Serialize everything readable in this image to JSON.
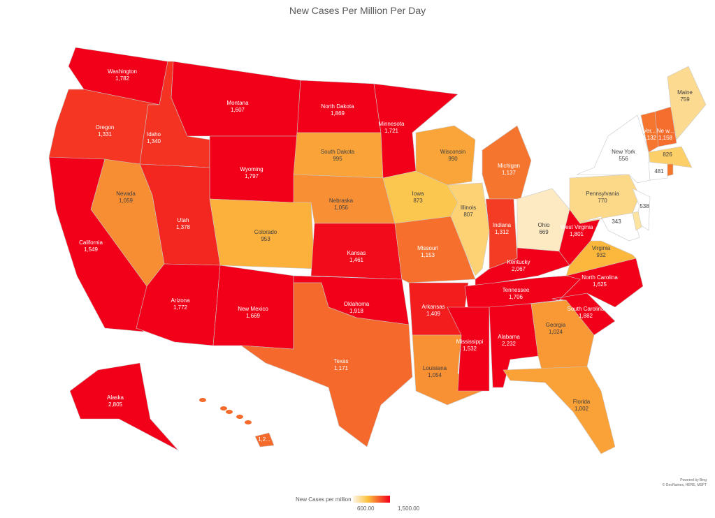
{
  "chart_data": {
    "type": "choropleth",
    "title": "New Cases Per Million Per Day",
    "legend": {
      "title": "New Cases per million",
      "min_label": "600.00",
      "max_label": "1,500.00",
      "min": 600,
      "max": 1500,
      "colors": [
        "#fdf6ea",
        "#fcc23f",
        "#f5602a",
        "#f20019"
      ]
    },
    "credit": [
      "Powered by Bing",
      "© GeoNames, HERE, MSFT"
    ],
    "regions": [
      {
        "id": "WA",
        "label": "Washington",
        "value": 1782,
        "text": "1,782"
      },
      {
        "id": "OR",
        "label": "Oregon",
        "value": 1331,
        "text": "1,331"
      },
      {
        "id": "ID",
        "label": "Idaho",
        "value": 1340,
        "text": "1,340"
      },
      {
        "id": "MT",
        "label": "Montana",
        "value": 1607,
        "text": "1,607"
      },
      {
        "id": "WY",
        "label": "Wyoming",
        "value": 1797,
        "text": "1,797"
      },
      {
        "id": "ND",
        "label": "North Dakota",
        "value": 1869,
        "text": "1,869"
      },
      {
        "id": "SD",
        "label": "South Dakota",
        "value": 995,
        "text": "995"
      },
      {
        "id": "NE",
        "label": "Nebraska",
        "value": 1056,
        "text": "1,056"
      },
      {
        "id": "CO",
        "label": "Colorado",
        "value": 953,
        "text": "953"
      },
      {
        "id": "UT",
        "label": "Utah",
        "value": 1378,
        "text": "1,378"
      },
      {
        "id": "NV",
        "label": "Nevada",
        "value": 1059,
        "text": "1,059"
      },
      {
        "id": "CA",
        "label": "California",
        "value": 1549,
        "text": "1,549"
      },
      {
        "id": "AZ",
        "label": "Arizona",
        "value": 1772,
        "text": "1,772"
      },
      {
        "id": "NM",
        "label": "New Mexico",
        "value": 1669,
        "text": "1,669"
      },
      {
        "id": "KS",
        "label": "Kansas",
        "value": 1461,
        "text": "1,461"
      },
      {
        "id": "OK",
        "label": "Oklahoma",
        "value": 1918,
        "text": "1,918"
      },
      {
        "id": "TX",
        "label": "Texas",
        "value": 1171,
        "text": "1,171"
      },
      {
        "id": "MN",
        "label": "Minnesota",
        "value": 1721,
        "text": "1,721"
      },
      {
        "id": "IA",
        "label": "Iowa",
        "value": 873,
        "text": "873"
      },
      {
        "id": "MO",
        "label": "Missouri",
        "value": 1153,
        "text": "1,153"
      },
      {
        "id": "AR",
        "label": "Arkansas",
        "value": 1409,
        "text": "1,409"
      },
      {
        "id": "LA",
        "label": "Louisiana",
        "value": 1054,
        "text": "1,054"
      },
      {
        "id": "WI",
        "label": "Wisconsin",
        "value": 990,
        "text": "990"
      },
      {
        "id": "IL",
        "label": "Illinois",
        "value": 807,
        "text": "807"
      },
      {
        "id": "MI",
        "label": "Michigan",
        "value": 1137,
        "text": "1,137"
      },
      {
        "id": "IN",
        "label": "Indiana",
        "value": 1312,
        "text": "1,312"
      },
      {
        "id": "OH",
        "label": "Ohio",
        "value": 669,
        "text": "669"
      },
      {
        "id": "KY",
        "label": "Kentucky",
        "value": 2067,
        "text": "2,067"
      },
      {
        "id": "TN",
        "label": "Tennessee",
        "value": 1706,
        "text": "1,706"
      },
      {
        "id": "MS",
        "label": "Mississippi",
        "value": 1532,
        "text": "1,532"
      },
      {
        "id": "AL",
        "label": "Alabama",
        "value": 2232,
        "text": "2,232"
      },
      {
        "id": "GA",
        "label": "Georgia",
        "value": 1024,
        "text": "1,024"
      },
      {
        "id": "FL",
        "label": "Florida",
        "value": 1002,
        "text": "1,002"
      },
      {
        "id": "SC",
        "label": "South Carolina",
        "value": 1882,
        "text": "1,882"
      },
      {
        "id": "NC",
        "label": "North Carolina",
        "value": 1625,
        "text": "1,625"
      },
      {
        "id": "VA",
        "label": "Virginia",
        "value": 932,
        "text": "932"
      },
      {
        "id": "WV",
        "label": "West Virginia",
        "value": 1801,
        "text": "1,801"
      },
      {
        "id": "PA",
        "label": "Pennsylvania",
        "value": 770,
        "text": "770"
      },
      {
        "id": "NY",
        "label": "New York",
        "value": 556,
        "text": "556"
      },
      {
        "id": "NJ",
        "label": "",
        "value": 538,
        "text": "538"
      },
      {
        "id": "MD",
        "label": "",
        "value": 343,
        "text": "343"
      },
      {
        "id": "DE",
        "label": "",
        "value": null,
        "text": "",
        "color": "#fde3a0"
      },
      {
        "id": "VT",
        "label": "Ver...",
        "value": 1132,
        "text": "1,132"
      },
      {
        "id": "NH",
        "label": "Ne w...",
        "value": 1158,
        "text": "1,158"
      },
      {
        "id": "ME",
        "label": "Maine",
        "value": 759,
        "text": "759"
      },
      {
        "id": "MA",
        "label": "",
        "value": 826,
        "text": "826"
      },
      {
        "id": "CT",
        "label": "",
        "value": 481,
        "text": "481"
      },
      {
        "id": "RI",
        "label": "",
        "value": null,
        "text": "",
        "color": "#f5772b"
      },
      {
        "id": "AK",
        "label": "Alaska",
        "value": 2805,
        "text": "2,805"
      },
      {
        "id": "HI",
        "label": "",
        "value": null,
        "text": "1,2...",
        "color": "#f5692a"
      }
    ]
  }
}
